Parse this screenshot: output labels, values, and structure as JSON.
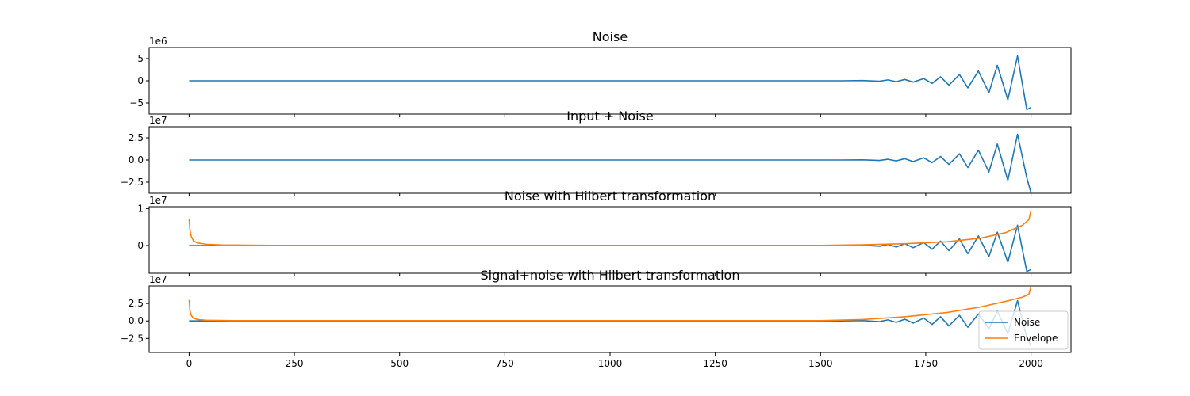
{
  "chart_data": [
    {
      "type": "line",
      "title": "Noise",
      "offset_text": "1e6",
      "scale": 1000000,
      "xlim": [
        -95,
        2095
      ],
      "ylim": [
        -7.5,
        7.5
      ],
      "yticks": [
        5,
        0,
        -5
      ],
      "ytick_labels": [
        "5",
        "0",
        "−5"
      ],
      "xticks": [
        0,
        250,
        500,
        750,
        1000,
        1250,
        1500,
        1750,
        2000
      ],
      "xtick_labels": [],
      "series": [
        {
          "key": "noise",
          "color": "#1f77b4",
          "points": [
            [
              0,
              0
            ],
            [
              1550,
              0
            ],
            [
              1600,
              0.05
            ],
            [
              1640,
              -0.1
            ],
            [
              1660,
              0.2
            ],
            [
              1680,
              -0.2
            ],
            [
              1700,
              0.3
            ],
            [
              1720,
              -0.3
            ],
            [
              1745,
              0.5
            ],
            [
              1765,
              -0.6
            ],
            [
              1785,
              0.9
            ],
            [
              1805,
              -1.0
            ],
            [
              1830,
              1.4
            ],
            [
              1850,
              -1.6
            ],
            [
              1875,
              2.2
            ],
            [
              1900,
              -2.7
            ],
            [
              1920,
              3.5
            ],
            [
              1945,
              -4.3
            ],
            [
              1968,
              5.6
            ],
            [
              1990,
              -6.5
            ],
            [
              2000,
              -6.0
            ]
          ]
        }
      ]
    },
    {
      "type": "line",
      "title": "Input + Noise",
      "offset_text": "1e7",
      "scale": 10000000,
      "xlim": [
        -95,
        2095
      ],
      "ylim": [
        -3.75,
        3.75
      ],
      "yticks": [
        2.5,
        0,
        -2.5
      ],
      "ytick_labels": [
        "2.5",
        "0.0",
        "−2.5"
      ],
      "xticks": [
        0,
        250,
        500,
        750,
        1000,
        1250,
        1500,
        1750,
        2000
      ],
      "xtick_labels": [],
      "series": [
        {
          "key": "input_noise",
          "color": "#1f77b4",
          "points": [
            [
              0,
              0
            ],
            [
              1550,
              0
            ],
            [
              1600,
              0.02
            ],
            [
              1640,
              -0.05
            ],
            [
              1660,
              0.08
            ],
            [
              1680,
              -0.1
            ],
            [
              1700,
              0.15
            ],
            [
              1720,
              -0.18
            ],
            [
              1745,
              0.25
            ],
            [
              1765,
              -0.3
            ],
            [
              1785,
              0.4
            ],
            [
              1805,
              -0.5
            ],
            [
              1830,
              0.7
            ],
            [
              1850,
              -0.85
            ],
            [
              1875,
              1.1
            ],
            [
              1900,
              -1.35
            ],
            [
              1920,
              1.8
            ],
            [
              1945,
              -2.3
            ],
            [
              1968,
              2.9
            ],
            [
              1990,
              -2.0
            ],
            [
              2000,
              -3.7
            ]
          ]
        }
      ]
    },
    {
      "type": "line",
      "title": "Noise with Hilbert transformation",
      "offset_text": "1e7",
      "scale": 10000000,
      "xlim": [
        -95,
        2095
      ],
      "ylim": [
        -0.75,
        1.05
      ],
      "yticks": [
        1,
        0
      ],
      "ytick_labels": [
        "1",
        "0"
      ],
      "xticks": [
        0,
        250,
        500,
        750,
        1000,
        1250,
        1500,
        1750,
        2000
      ],
      "xtick_labels": [],
      "series": [
        {
          "key": "noise",
          "color": "#1f77b4",
          "points": [
            [
              0,
              0
            ],
            [
              1550,
              0
            ],
            [
              1600,
              0.01
            ],
            [
              1640,
              -0.02
            ],
            [
              1660,
              0.03
            ],
            [
              1680,
              -0.04
            ],
            [
              1700,
              0.05
            ],
            [
              1720,
              -0.06
            ],
            [
              1745,
              0.08
            ],
            [
              1765,
              -0.1
            ],
            [
              1785,
              0.12
            ],
            [
              1805,
              -0.14
            ],
            [
              1830,
              0.18
            ],
            [
              1850,
              -0.22
            ],
            [
              1875,
              0.26
            ],
            [
              1900,
              -0.3
            ],
            [
              1920,
              0.36
            ],
            [
              1945,
              -0.45
            ],
            [
              1968,
              0.55
            ],
            [
              1990,
              -0.7
            ],
            [
              2000,
              -0.65
            ]
          ]
        },
        {
          "key": "envelope",
          "color": "#ff7f0e",
          "points": [
            [
              0,
              0.72
            ],
            [
              2,
              0.42
            ],
            [
              5,
              0.25
            ],
            [
              10,
              0.13
            ],
            [
              20,
              0.07
            ],
            [
              40,
              0.035
            ],
            [
              80,
              0.015
            ],
            [
              200,
              0.005
            ],
            [
              1500,
              0.005
            ],
            [
              1600,
              0.02
            ],
            [
              1700,
              0.05
            ],
            [
              1800,
              0.1
            ],
            [
              1880,
              0.2
            ],
            [
              1940,
              0.35
            ],
            [
              1980,
              0.55
            ],
            [
              1995,
              0.7
            ],
            [
              2000,
              0.95
            ]
          ]
        }
      ]
    },
    {
      "type": "line",
      "title": "Signal+noise with Hilbert transformation",
      "offset_text": "1e7",
      "scale": 10000000,
      "xlim": [
        -95,
        2095
      ],
      "ylim": [
        -4.5,
        5.0
      ],
      "yticks": [
        2.5,
        0,
        -2.5
      ],
      "ytick_labels": [
        "2.5",
        "0.0",
        "−2.5"
      ],
      "xticks": [
        0,
        250,
        500,
        750,
        1000,
        1250,
        1500,
        1750,
        2000
      ],
      "xtick_labels": [
        "0",
        "250",
        "500",
        "750",
        "1000",
        "1250",
        "1500",
        "1750",
        "2000"
      ],
      "legend": {
        "placement": "lower-right",
        "entries": [
          {
            "label": "Noise",
            "color": "#1f77b4"
          },
          {
            "label": "Envelope",
            "color": "#ff7f0e"
          }
        ]
      },
      "series": [
        {
          "key": "noise",
          "color": "#1f77b4",
          "points": [
            [
              0,
              0
            ],
            [
              1550,
              0
            ],
            [
              1600,
              0.05
            ],
            [
              1640,
              -0.1
            ],
            [
              1660,
              0.15
            ],
            [
              1680,
              -0.2
            ],
            [
              1700,
              0.25
            ],
            [
              1720,
              -0.3
            ],
            [
              1745,
              0.4
            ],
            [
              1765,
              -0.5
            ],
            [
              1785,
              0.6
            ],
            [
              1805,
              -0.7
            ],
            [
              1830,
              0.8
            ],
            [
              1850,
              -0.9
            ],
            [
              1875,
              1.0
            ],
            [
              1900,
              -1.1
            ],
            [
              1920,
              1.4
            ],
            [
              1945,
              -1.8
            ],
            [
              1968,
              2.9
            ],
            [
              1990,
              -2.4
            ],
            [
              2000,
              -3.5
            ]
          ]
        },
        {
          "key": "envelope",
          "color": "#ff7f0e",
          "points": [
            [
              0,
              3.0
            ],
            [
              2,
              1.5
            ],
            [
              5,
              0.8
            ],
            [
              10,
              0.4
            ],
            [
              20,
              0.2
            ],
            [
              40,
              0.1
            ],
            [
              100,
              0.05
            ],
            [
              1500,
              0.05
            ],
            [
              1600,
              0.2
            ],
            [
              1700,
              0.6
            ],
            [
              1800,
              1.2
            ],
            [
              1880,
              2.0
            ],
            [
              1940,
              2.8
            ],
            [
              1980,
              3.4
            ],
            [
              1995,
              3.8
            ],
            [
              2000,
              4.9
            ]
          ]
        }
      ]
    }
  ]
}
